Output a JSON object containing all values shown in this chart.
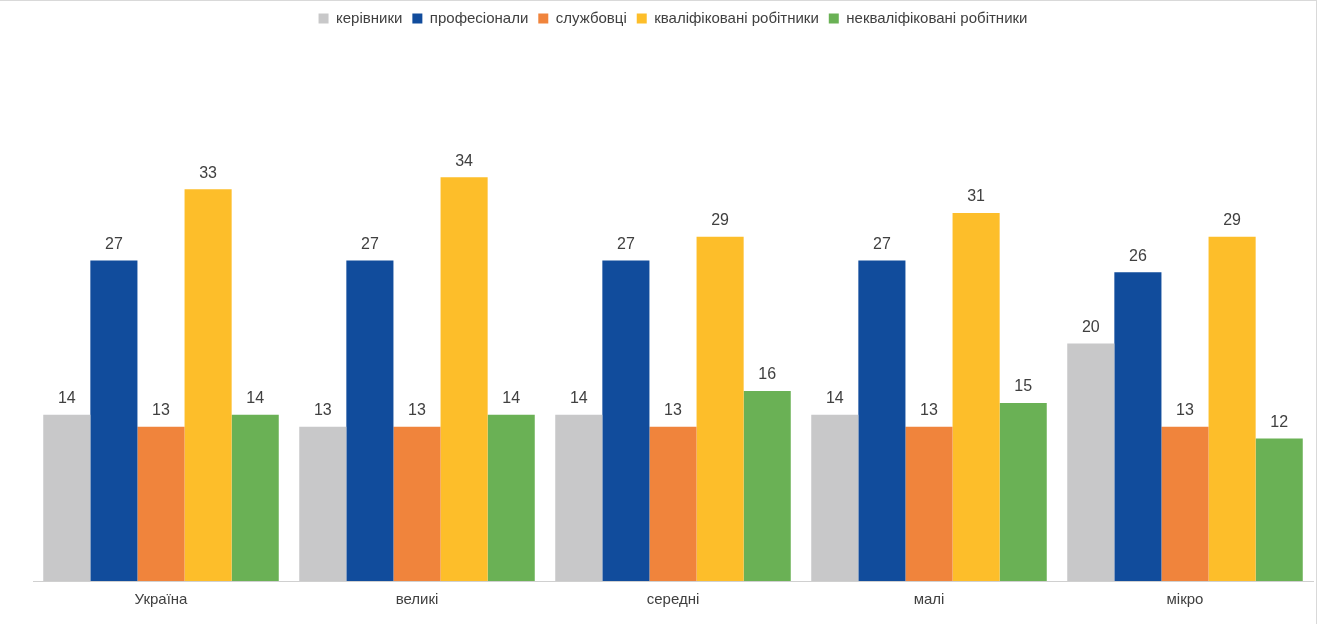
{
  "chart_data": {
    "type": "bar",
    "categories": [
      "Україна",
      "великі",
      "середні",
      "малі",
      "мікро"
    ],
    "series": [
      {
        "name": "керівники",
        "color": "#c8c8c9",
        "values": [
          14,
          13,
          14,
          14,
          20
        ]
      },
      {
        "name": "професіонали",
        "color": "#114c9c",
        "values": [
          27,
          27,
          27,
          27,
          26
        ]
      },
      {
        "name": "службовці",
        "color": "#f0843c",
        "values": [
          13,
          13,
          13,
          13,
          13
        ]
      },
      {
        "name": "кваліфіковані робітники",
        "color": "#fdbe2a",
        "values": [
          33,
          34,
          29,
          31,
          29
        ]
      },
      {
        "name": "некваліфіковані робітники",
        "color": "#6ab155",
        "values": [
          14,
          14,
          16,
          15,
          12
        ]
      }
    ],
    "data_labels": true,
    "legend": "top"
  }
}
